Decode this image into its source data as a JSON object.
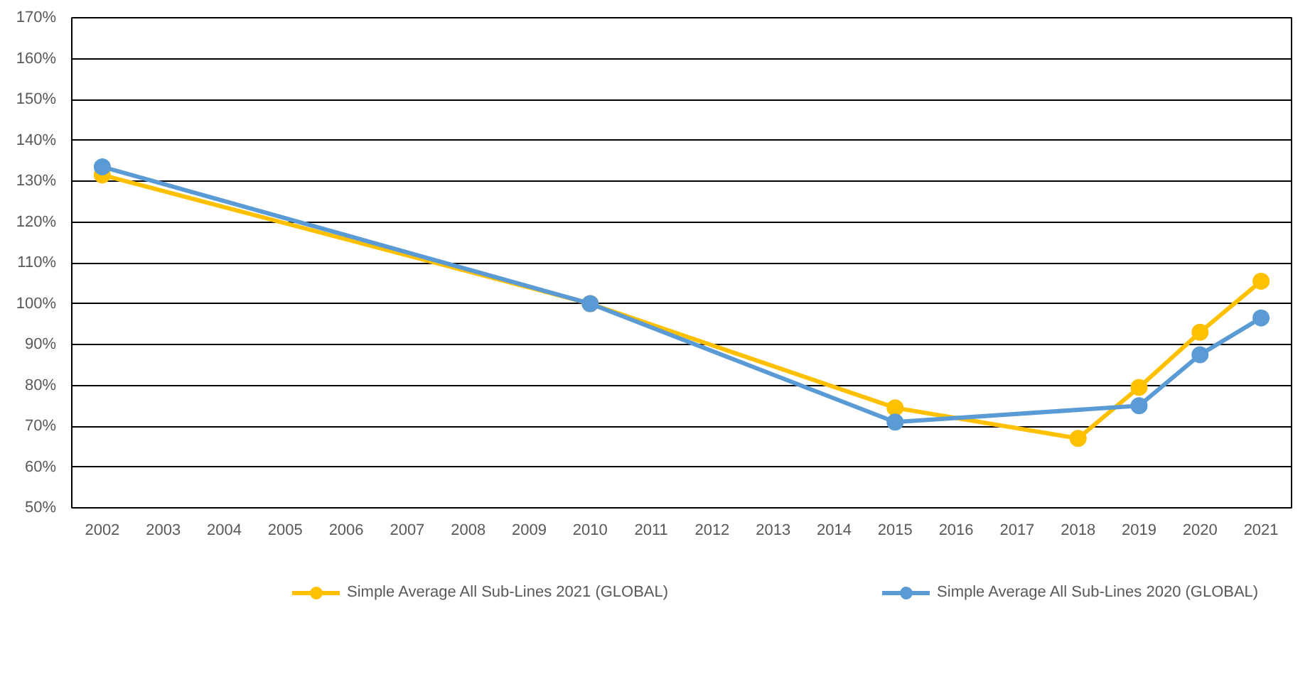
{
  "chart_data": {
    "type": "line",
    "xlim": [
      2001.5,
      2021.5
    ],
    "xticks": [
      2002,
      2003,
      2004,
      2005,
      2006,
      2007,
      2008,
      2009,
      2010,
      2011,
      2012,
      2013,
      2014,
      2015,
      2016,
      2017,
      2018,
      2019,
      2020,
      2021
    ],
    "ylim": [
      50,
      170
    ],
    "yticks": [
      {
        "value": 50,
        "label": "50%"
      },
      {
        "value": 60,
        "label": "60%"
      },
      {
        "value": 70,
        "label": "70%"
      },
      {
        "value": 80,
        "label": "80%"
      },
      {
        "value": 90,
        "label": "90%"
      },
      {
        "value": 100,
        "label": "100%"
      },
      {
        "value": 110,
        "label": "110%"
      },
      {
        "value": 120,
        "label": "120%"
      },
      {
        "value": 130,
        "label": "130%"
      },
      {
        "value": 140,
        "label": "140%"
      },
      {
        "value": 150,
        "label": "150%"
      },
      {
        "value": 160,
        "label": "160%"
      },
      {
        "value": 170,
        "label": "170%"
      }
    ],
    "grid": "y",
    "legend": "bottom",
    "marker": "circle",
    "line_style": "solid",
    "series": [
      {
        "name": "Simple Average All Sub-Lines 2021 (GLOBAL)",
        "color": "#ffc000",
        "x": [
          2002,
          2010,
          2015,
          2018,
          2019,
          2020,
          2021
        ],
        "values": [
          131.5,
          100,
          74.5,
          67,
          79.5,
          93,
          105.5
        ]
      },
      {
        "name": "Simple Average All Sub-Lines 2020 (GLOBAL)",
        "color": "#5b9bd5",
        "x": [
          2002,
          2010,
          2015,
          2019,
          2020,
          2021
        ],
        "values": [
          133.5,
          100,
          71,
          75,
          87.5,
          96.5
        ]
      }
    ]
  }
}
